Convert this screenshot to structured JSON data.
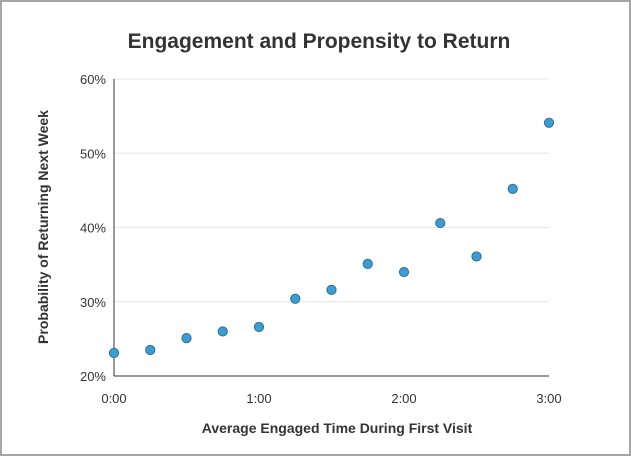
{
  "chart_data": {
    "type": "scatter",
    "title": "Engagement and Propensity to Return",
    "xlabel": "Average Engaged Time During First Visit",
    "ylabel": "Probability of Returning Next Week",
    "x_unit": "minutes",
    "xlim": [
      0,
      3
    ],
    "ylim": [
      20,
      60
    ],
    "x_ticks": [
      {
        "value": 0,
        "label": "0:00"
      },
      {
        "value": 1,
        "label": "1:00"
      },
      {
        "value": 2,
        "label": "2:00"
      },
      {
        "value": 3,
        "label": "3:00"
      }
    ],
    "y_ticks": [
      {
        "value": 20,
        "label": "20%"
      },
      {
        "value": 30,
        "label": "30%"
      },
      {
        "value": 40,
        "label": "40%"
      },
      {
        "value": 50,
        "label": "50%"
      },
      {
        "value": 60,
        "label": "60%"
      }
    ],
    "grid": true,
    "points": [
      {
        "x": 0.0,
        "y": 23.1
      },
      {
        "x": 0.25,
        "y": 23.5
      },
      {
        "x": 0.5,
        "y": 25.1
      },
      {
        "x": 0.75,
        "y": 26.0
      },
      {
        "x": 1.0,
        "y": 26.6
      },
      {
        "x": 1.25,
        "y": 30.4
      },
      {
        "x": 1.5,
        "y": 31.6
      },
      {
        "x": 1.75,
        "y": 35.1
      },
      {
        "x": 2.0,
        "y": 34.0
      },
      {
        "x": 2.25,
        "y": 40.6
      },
      {
        "x": 2.5,
        "y": 36.1
      },
      {
        "x": 2.75,
        "y": 45.2
      },
      {
        "x": 3.0,
        "y": 54.1
      }
    ],
    "colors": {
      "point": "#3d9cd3",
      "point_stroke": "#2a6f99",
      "grid": "#e6e6e6",
      "text": "#333333"
    }
  }
}
